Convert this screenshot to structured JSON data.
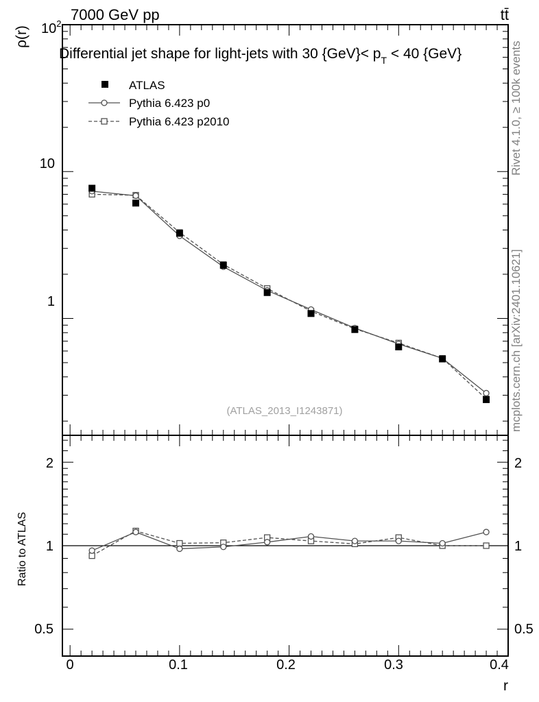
{
  "header": {
    "left_label": "7000 GeV pp",
    "right_label": "tt̄"
  },
  "side_labels": {
    "rivet": "Rivet 4.1.0, ≥ 100k events",
    "mcplots": "mcplots.cern.ch [arXiv:2401.10621]"
  },
  "chart_data": [
    {
      "panel": "main",
      "type": "line",
      "title": "Differential jet shape for light-jets with 30 {GeV}< p_T < 40 {GeV}",
      "title_parts": {
        "main": "Differential jet shape for light-jets with 30 {GeV}< p",
        "sub": "T",
        "tail": " < 40 {GeV}"
      },
      "ylabel": "ρ(r)",
      "yscale": "log",
      "ylim": [
        0.16,
        100
      ],
      "ytick_labels": {
        "y1": "1",
        "y10": "10",
        "y100_base": "10",
        "y100_exp": "2"
      },
      "xlim": [
        -0.007,
        0.4
      ],
      "watermark": "(ATLAS_2013_I1243871)",
      "x": [
        0.02,
        0.06,
        0.1,
        0.14,
        0.18,
        0.22,
        0.26,
        0.3,
        0.34,
        0.38
      ],
      "series": [
        {
          "name": "ATLAS",
          "marker": "filled-square",
          "color": "#000000",
          "values": [
            7.7,
            6.1,
            3.8,
            2.3,
            1.5,
            1.08,
            0.84,
            0.64,
            0.53,
            0.28
          ]
        },
        {
          "name": "Pythia 6.423 p0",
          "marker": "open-circle",
          "line": "solid",
          "color": "#505050",
          "values": [
            7.35,
            6.85,
            3.65,
            2.25,
            1.55,
            1.15,
            0.86,
            0.67,
            0.535,
            0.31
          ]
        },
        {
          "name": "Pythia 6.423 p2010",
          "marker": "open-square",
          "line": "dashed",
          "color": "#505050",
          "values": [
            7.0,
            6.9,
            3.85,
            2.33,
            1.6,
            1.12,
            0.85,
            0.68,
            0.535,
            0.283
          ]
        }
      ]
    },
    {
      "panel": "ratio",
      "type": "line",
      "ylabel": "Ratio to ATLAS",
      "xlabel": "r",
      "yscale": "log",
      "ylim": [
        0.4,
        2.5
      ],
      "ytick_labels": [
        "0.5",
        "1",
        "2"
      ],
      "xticks": [
        0,
        0.1,
        0.2,
        0.3,
        0.4
      ],
      "xtick_labels": [
        "0",
        "0.1",
        "0.2",
        "0.3",
        "0.4"
      ],
      "reference_line": 1,
      "x": [
        0.02,
        0.06,
        0.1,
        0.14,
        0.18,
        0.22,
        0.26,
        0.3,
        0.34,
        0.38
      ],
      "series": [
        {
          "name": "Pythia 6.423 p0",
          "marker": "open-circle",
          "line": "solid",
          "color": "#505050",
          "values": [
            0.96,
            1.12,
            0.975,
            0.99,
            1.03,
            1.08,
            1.04,
            1.04,
            1.02,
            1.12
          ]
        },
        {
          "name": "Pythia 6.423 p2010",
          "marker": "open-square",
          "line": "dashed",
          "color": "#505050",
          "values": [
            0.92,
            1.13,
            1.02,
            1.025,
            1.07,
            1.04,
            1.015,
            1.07,
            1.0,
            1.0
          ]
        }
      ]
    }
  ]
}
